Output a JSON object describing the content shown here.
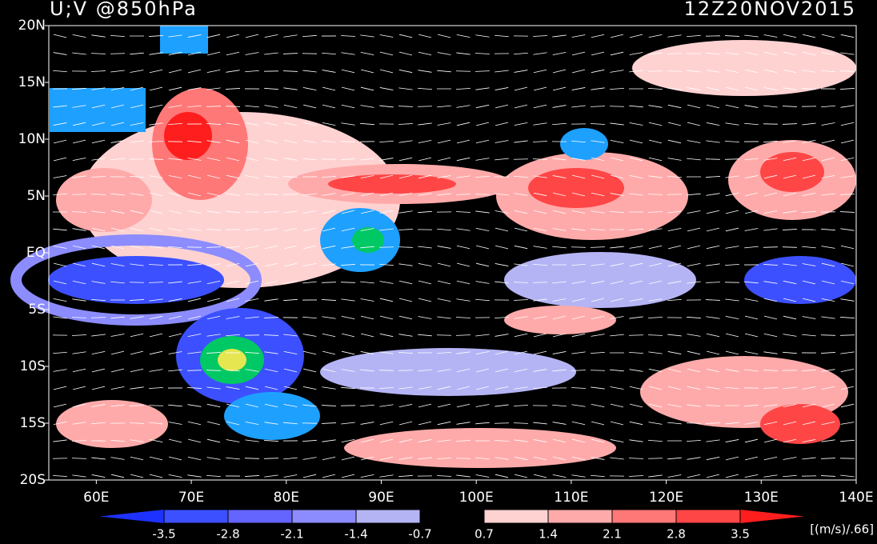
{
  "title": "U;V @850hPa",
  "time": "12Z20NOV2015",
  "map": {
    "xlim": [
      55,
      140
    ],
    "xticks": [
      {
        "value": 60,
        "label": "60E"
      },
      {
        "value": 70,
        "label": "70E"
      },
      {
        "value": 80,
        "label": "80E"
      },
      {
        "value": 90,
        "label": "90E"
      },
      {
        "value": 100,
        "label": "100E"
      },
      {
        "value": 110,
        "label": "110E"
      },
      {
        "value": 120,
        "label": "120E"
      },
      {
        "value": 130,
        "label": "130E"
      },
      {
        "value": 140,
        "label": "140E"
      }
    ],
    "ylim": [
      -20,
      20
    ],
    "yticks": [
      {
        "value": 20,
        "label": "20N"
      },
      {
        "value": 15,
        "label": "15N"
      },
      {
        "value": 10,
        "label": "10N"
      },
      {
        "value": 5,
        "label": "5N"
      },
      {
        "value": 0,
        "label": "EQ"
      },
      {
        "value": -5,
        "label": "5S"
      },
      {
        "value": -10,
        "label": "10S"
      },
      {
        "value": -15,
        "label": "15S"
      },
      {
        "value": -20,
        "label": "20S"
      }
    ]
  },
  "colorbar": {
    "levels": [
      -3.5,
      -2.8,
      -2.1,
      -1.4,
      -0.7,
      0.7,
      1.4,
      2.1,
      2.8,
      3.5
    ],
    "colors": [
      "#1e32ff",
      "#3c50ff",
      "#6464ff",
      "#8c8cff",
      "#b4b4f5",
      "#dcdcfa",
      "#000000",
      "#ffd2d2",
      "#ffaaaa",
      "#ff7878",
      "#ff4646",
      "#ff1e1e"
    ],
    "units": "[(m/s)/.66]"
  }
}
